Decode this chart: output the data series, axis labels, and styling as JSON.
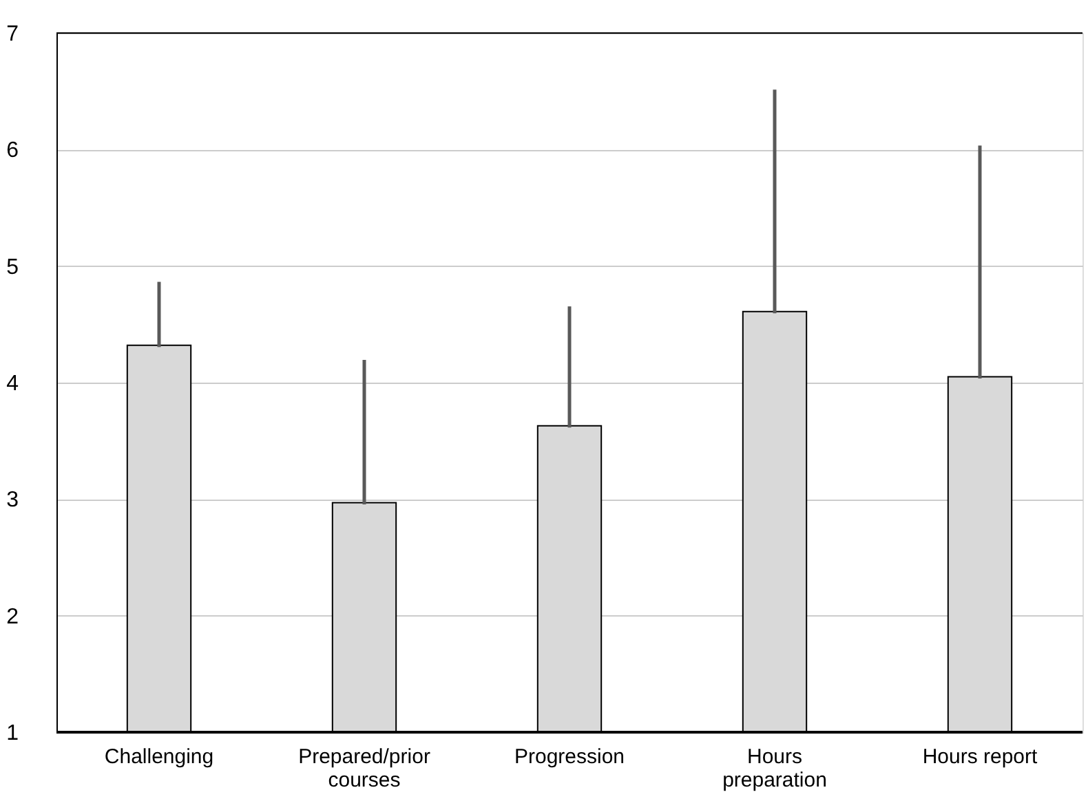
{
  "chart_data": {
    "type": "bar",
    "categories": [
      "Challenging",
      "Prepared/prior courses",
      "Progression",
      "Hours preparation",
      "Hours report"
    ],
    "values": [
      4.32,
      2.97,
      3.63,
      4.61,
      4.05
    ],
    "errors": [
      [
        4.32,
        4.85
      ],
      [
        2.97,
        4.18
      ],
      [
        3.63,
        4.64
      ],
      [
        4.61,
        6.5
      ],
      [
        4.05,
        6.02
      ]
    ],
    "color": "#d9d9d9",
    "ylim": [
      1,
      7
    ],
    "yticks": [
      1,
      2,
      3,
      4,
      5,
      6,
      7
    ],
    "grid": "y"
  }
}
